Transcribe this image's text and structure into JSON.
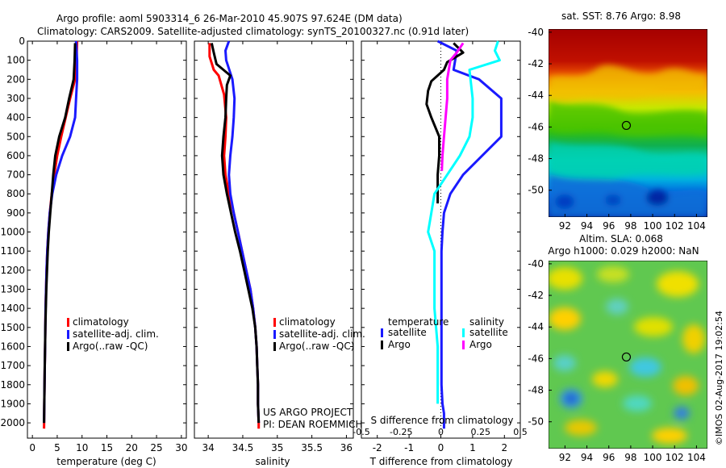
{
  "title": {
    "line1": "Argo profile: aoml 5903314_6 26-Mar-2010 45.907S 97.624E (DM data)",
    "line2": "Climatology: CARS2009. Satellite-adjusted climatology: synTS_20100327.nc (0.91d later)"
  },
  "credits": {
    "project": "US ARGO PROJECT",
    "pi": "PI: DEAN ROEMMICH",
    "imos": "©IMOS 02-Aug-2017 19:02:54"
  },
  "colors": {
    "red": "#ff0000",
    "blue": "#1a1aff",
    "black": "#000000",
    "cyan": "#00ffff",
    "magenta": "#ff00ff"
  },
  "chart_data": [
    {
      "id": "temperature",
      "type": "line",
      "xlabel": "temperature (deg C)",
      "ylabel": "",
      "xlim": [
        -1,
        31
      ],
      "ylim": [
        2080,
        0
      ],
      "xticks": [
        0,
        5,
        10,
        15,
        20,
        25,
        30
      ],
      "yticks": [
        0,
        100,
        200,
        300,
        400,
        500,
        600,
        700,
        800,
        900,
        1000,
        1100,
        1200,
        1300,
        1400,
        1500,
        1600,
        1700,
        1800,
        1900,
        2000
      ],
      "legend": [
        "climatology",
        "satellite-adj. clim.",
        "Argo(..raw -QC)"
      ],
      "series": [
        {
          "name": "climatology",
          "color": "red",
          "x": [
            9.0,
            8.9,
            8.6,
            7.6,
            6.7,
            5.8,
            5.0,
            4.4,
            3.9,
            3.5,
            3.2,
            3.0,
            2.85,
            2.75,
            2.65,
            2.6,
            2.55,
            2.5,
            2.45,
            2.4,
            2.35
          ],
          "y": [
            0,
            100,
            200,
            300,
            400,
            500,
            600,
            700,
            800,
            900,
            1000,
            1100,
            1200,
            1300,
            1400,
            1500,
            1600,
            1700,
            1800,
            1900,
            2030
          ]
        },
        {
          "name": "satellite-adj. clim.",
          "color": "blue",
          "x": [
            8.8,
            9.0,
            9.0,
            8.8,
            8.6,
            7.6,
            6.0,
            4.8,
            4.0,
            3.5,
            3.2,
            3.0,
            2.85,
            2.75,
            2.65,
            2.6,
            2.55,
            2.5,
            2.45,
            2.4,
            2.35
          ],
          "y": [
            0,
            100,
            200,
            300,
            400,
            500,
            600,
            700,
            800,
            900,
            1000,
            1100,
            1200,
            1300,
            1400,
            1500,
            1600,
            1700,
            1800,
            1900,
            2000
          ]
        },
        {
          "name": "Argo(..raw -QC)",
          "color": "black",
          "x": [
            8.6,
            8.5,
            8.3,
            7.4,
            6.6,
            5.4,
            4.6,
            4.2,
            3.9,
            3.6,
            3.3,
            3.1,
            2.95,
            2.8,
            2.7,
            2.6,
            2.55,
            2.5,
            2.45,
            2.4,
            2.35
          ],
          "y": [
            10,
            100,
            200,
            300,
            400,
            500,
            600,
            700,
            800,
            900,
            1000,
            1100,
            1200,
            1300,
            1400,
            1500,
            1600,
            1700,
            1800,
            1900,
            2000
          ]
        }
      ]
    },
    {
      "id": "salinity",
      "type": "line",
      "xlabel": "salinity",
      "xlim": [
        33.8,
        36.1
      ],
      "ylim": [
        2080,
        0
      ],
      "xticks": [
        34,
        34.5,
        35,
        35.5,
        36
      ],
      "legend": [
        "climatology",
        "satellite-adj. clim.",
        "Argo(..raw -QC)"
      ],
      "series": [
        {
          "name": "climatology",
          "color": "red",
          "x": [
            34.02,
            34.02,
            34.08,
            34.15,
            34.23,
            34.26,
            34.25,
            34.23,
            34.25,
            34.3,
            34.37,
            34.43,
            34.49,
            34.55,
            34.61,
            34.65,
            34.68,
            34.7,
            34.71,
            34.72,
            34.72,
            34.73,
            34.73
          ],
          "y": [
            10,
            80,
            150,
            180,
            280,
            400,
            500,
            600,
            700,
            800,
            900,
            1000,
            1100,
            1200,
            1300,
            1400,
            1500,
            1600,
            1700,
            1800,
            1900,
            2000,
            2030
          ]
        },
        {
          "name": "satellite-adj. clim.",
          "color": "blue",
          "x": [
            34.3,
            34.25,
            34.26,
            34.35,
            34.38,
            34.37,
            34.35,
            34.32,
            34.3,
            34.32,
            34.37,
            34.43,
            34.49,
            34.55,
            34.61,
            34.65,
            34.68,
            34.7,
            34.71,
            34.72,
            34.72,
            34.73
          ],
          "y": [
            0,
            50,
            100,
            200,
            300,
            400,
            500,
            600,
            700,
            800,
            900,
            1000,
            1100,
            1200,
            1300,
            1400,
            1500,
            1600,
            1700,
            1800,
            1900,
            2000
          ]
        },
        {
          "name": "Argo(..raw -QC)",
          "color": "black",
          "x": [
            34.05,
            34.08,
            34.12,
            34.32,
            34.27,
            34.26,
            34.25,
            34.22,
            34.2,
            34.22,
            34.27,
            34.33,
            34.39,
            34.46,
            34.52,
            34.58,
            34.64,
            34.68,
            34.7,
            34.71,
            34.72,
            34.72,
            34.73
          ],
          "y": [
            10,
            60,
            120,
            180,
            230,
            300,
            400,
            500,
            600,
            700,
            800,
            900,
            1000,
            1100,
            1200,
            1300,
            1400,
            1500,
            1600,
            1700,
            1800,
            1900,
            2000
          ]
        }
      ]
    },
    {
      "id": "difference",
      "type": "line",
      "xlabel": "T difference from climatology",
      "xlabel_top": "S difference from climatology",
      "xlim": [
        -2.5,
        2.5
      ],
      "ylim": [
        2080,
        0
      ],
      "xticks": [
        -2,
        -1,
        0,
        1,
        2
      ],
      "sticks": [
        -0.5,
        -0.25,
        0,
        0.25,
        0.5
      ],
      "sticklabels": [
        "-0.5",
        "-0.25",
        "0",
        "0.25",
        "0.5"
      ],
      "legend_headers": [
        "temperature",
        "salinity"
      ],
      "legend": [
        {
          "label": "satellite",
          "color": "blue"
        },
        {
          "label": "Argo",
          "color": "black"
        },
        {
          "label": "satellite",
          "color": "cyan"
        },
        {
          "label": "Argo",
          "color": "magenta"
        }
      ],
      "series": [
        {
          "name": "temperature satellite",
          "color": "blue",
          "x": [
            -0.1,
            0.5,
            0.4,
            1.2,
            1.9,
            1.9,
            1.9,
            1.3,
            0.7,
            0.3,
            0.1,
            0.05,
            0.02,
            0.02,
            0.02,
            0.02,
            0.02,
            0.05,
            0.1,
            0.1,
            0.1
          ],
          "y": [
            0,
            50,
            150,
            200,
            300,
            400,
            500,
            600,
            700,
            800,
            900,
            1000,
            1100,
            1200,
            1400,
            1600,
            1800,
            1900,
            1950,
            2000,
            2030
          ]
        },
        {
          "name": "temperature Argo",
          "color": "black",
          "x": [
            0.4,
            0.7,
            0.2,
            0.1,
            -0.3,
            -0.4,
            -0.45,
            -0.3,
            -0.05,
            -0.05,
            -0.1,
            -0.1,
            -0.1
          ],
          "y": [
            10,
            60,
            110,
            150,
            210,
            260,
            330,
            400,
            500,
            600,
            700,
            800,
            850
          ]
        },
        {
          "name": "salinity satellite",
          "color": "cyan",
          "x": [
            1.8,
            1.7,
            1.85,
            0.9,
            1.0,
            1.0,
            0.9,
            0.6,
            0.2,
            -0.2,
            -0.3,
            -0.4,
            -0.2,
            -0.2,
            -0.2,
            -0.1,
            -0.1
          ],
          "y": [
            0,
            50,
            100,
            150,
            300,
            400,
            500,
            600,
            700,
            800,
            900,
            1000,
            1100,
            1200,
            1400,
            1600,
            1900
          ]
        },
        {
          "name": "salinity Argo",
          "color": "magenta",
          "x": [
            0.7,
            0.5,
            0.3,
            0.2,
            0.2,
            0.15,
            0.1,
            0.05,
            0.03
          ],
          "y": [
            10,
            60,
            100,
            200,
            300,
            400,
            500,
            600,
            680
          ]
        }
      ]
    },
    {
      "id": "sst_map",
      "type": "heatmap",
      "title": "sat. SST: 8.76 Argo: 8.98",
      "xlim": [
        90.5,
        105
      ],
      "ylim": [
        -51.7,
        -39.8
      ],
      "xticks": [
        92,
        94,
        96,
        98,
        100,
        102,
        104
      ],
      "yticks": [
        -40,
        -42,
        -44,
        -46,
        -48,
        -50
      ],
      "marker": {
        "x": 97.6,
        "y": -45.9
      }
    },
    {
      "id": "sla_map",
      "type": "heatmap",
      "title": "Altim. SLA: 0.068",
      "subtitle": "Argo h1000: 0.029 h2000: NaN",
      "xlim": [
        90.5,
        105
      ],
      "ylim": [
        -51.7,
        -39.8
      ],
      "xticks": [
        92,
        94,
        96,
        98,
        100,
        102,
        104
      ],
      "yticks": [
        -40,
        -42,
        -44,
        -46,
        -48,
        -50
      ],
      "marker": {
        "x": 97.6,
        "y": -45.9
      }
    }
  ]
}
